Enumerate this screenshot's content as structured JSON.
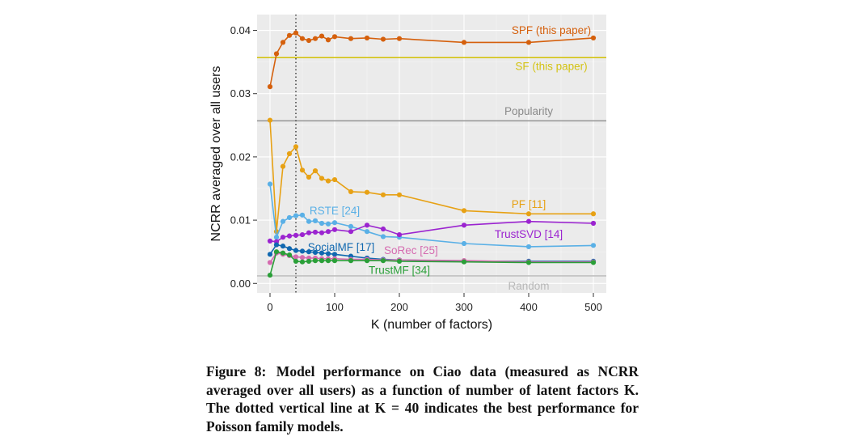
{
  "figure": {
    "caption_label": "Figure 8:",
    "caption_text": "Model performance on Ciao data (measured as NCRR averaged over all users) as a function of number of latent factors K. The dotted vertical line at K = 40 indicates the best performance for Poisson family models."
  },
  "chart_data": {
    "type": "line",
    "xlabel": "K (number of factors)",
    "ylabel": "NCRR averaged over all users",
    "xlim": [
      -20,
      520
    ],
    "ylim": [
      -0.0015,
      0.0425
    ],
    "xticks": [
      0,
      100,
      200,
      300,
      400,
      500
    ],
    "yticks": [
      0.0,
      0.01,
      0.02,
      0.03,
      0.04
    ],
    "ytick_labels": [
      "0.00",
      "0.01",
      "0.02",
      "0.03",
      "0.04"
    ],
    "grid": true,
    "background": "#ebebeb",
    "vline": {
      "x": 40,
      "style": "dotted"
    },
    "hlines": [
      {
        "name": "SF (this paper)",
        "y": 0.0357,
        "color": "#d4c313"
      },
      {
        "name": "Popularity",
        "y": 0.0257,
        "color": "#9a9a9a"
      },
      {
        "name": "Random",
        "y": 0.0012,
        "color": "#c0c0c0"
      }
    ],
    "series": [
      {
        "name": "SPF (this paper)",
        "color": "#d5600d",
        "x": [
          0,
          10,
          20,
          30,
          40,
          50,
          60,
          70,
          80,
          90,
          100,
          125,
          150,
          175,
          200,
          300,
          400,
          500
        ],
        "y": [
          0.0311,
          0.0363,
          0.0381,
          0.0392,
          0.0396,
          0.0387,
          0.0384,
          0.0387,
          0.0391,
          0.0385,
          0.039,
          0.0387,
          0.0388,
          0.0386,
          0.0387,
          0.0381,
          0.0381,
          0.0388
        ]
      },
      {
        "name": "PF [11]",
        "color": "#e7a114",
        "x": [
          0,
          10,
          20,
          30,
          40,
          50,
          60,
          70,
          80,
          90,
          100,
          125,
          150,
          175,
          200,
          300,
          400,
          500
        ],
        "y": [
          0.0258,
          0.0082,
          0.0185,
          0.0205,
          0.0216,
          0.0179,
          0.0168,
          0.0178,
          0.0166,
          0.0162,
          0.0164,
          0.0145,
          0.0144,
          0.014,
          0.014,
          0.0115,
          0.011,
          0.011
        ]
      },
      {
        "name": "RSTE [24]",
        "color": "#5ab0e6",
        "x": [
          0,
          10,
          20,
          30,
          40,
          50,
          60,
          70,
          80,
          90,
          100,
          125,
          150,
          175,
          200,
          300,
          400,
          500
        ],
        "y": [
          0.0157,
          0.0073,
          0.0098,
          0.0104,
          0.0107,
          0.0108,
          0.0098,
          0.0099,
          0.0095,
          0.0094,
          0.0096,
          0.009,
          0.0082,
          0.0074,
          0.0073,
          0.0063,
          0.0058,
          0.006
        ]
      },
      {
        "name": "TrustSVD [14]",
        "color": "#9b24d0",
        "x": [
          0,
          10,
          20,
          30,
          40,
          50,
          60,
          70,
          80,
          90,
          100,
          125,
          150,
          175,
          200,
          300,
          400,
          500
        ],
        "y": [
          0.0067,
          0.0066,
          0.0073,
          0.0075,
          0.0076,
          0.0077,
          0.008,
          0.0081,
          0.008,
          0.0082,
          0.0085,
          0.0082,
          0.0092,
          0.0086,
          0.0077,
          0.0092,
          0.0098,
          0.0095
        ]
      },
      {
        "name": "SocialMF [17]",
        "color": "#1068b0",
        "x": [
          0,
          10,
          20,
          30,
          40,
          50,
          60,
          70,
          80,
          90,
          100,
          125,
          150,
          175,
          200,
          300,
          400,
          500
        ],
        "y": [
          0.0046,
          0.0061,
          0.0059,
          0.0055,
          0.0052,
          0.0051,
          0.005,
          0.0049,
          0.0048,
          0.0047,
          0.0046,
          0.0043,
          0.004,
          0.0038,
          0.0037,
          0.0035,
          0.0035,
          0.0035
        ]
      },
      {
        "name": "SoRec [25]",
        "color": "#d56bb0",
        "x": [
          0,
          10,
          20,
          30,
          40,
          50,
          60,
          70,
          80,
          90,
          100,
          125,
          150,
          175,
          200,
          300,
          400,
          500
        ],
        "y": [
          0.0033,
          0.0048,
          0.0046,
          0.0044,
          0.0042,
          0.0041,
          0.004,
          0.004,
          0.0039,
          0.0039,
          0.0039,
          0.0038,
          0.0038,
          0.0037,
          0.0037,
          0.0036,
          0.0034,
          0.0034
        ]
      },
      {
        "name": "TrustMF [34]",
        "color": "#2a9f38",
        "x": [
          0,
          10,
          20,
          30,
          40,
          50,
          60,
          70,
          80,
          90,
          100,
          125,
          150,
          175,
          200,
          300,
          400,
          500
        ],
        "y": [
          0.0013,
          0.005,
          0.0048,
          0.0045,
          0.0035,
          0.0034,
          0.0035,
          0.0036,
          0.0036,
          0.0036,
          0.0036,
          0.0036,
          0.0036,
          0.0036,
          0.0035,
          0.0034,
          0.0033,
          0.0033
        ]
      }
    ],
    "labels": [
      {
        "text": "SPF (this paper)",
        "x": 435,
        "y": 0.04,
        "color": "#d5600d"
      },
      {
        "text": "SF (this paper)",
        "x": 435,
        "y": 0.0343,
        "color": "#d4c313"
      },
      {
        "text": "Popularity",
        "x": 400,
        "y": 0.0272,
        "color": "#8a8a8a"
      },
      {
        "text": "PF [11]",
        "x": 400,
        "y": 0.0125,
        "color": "#e7a114"
      },
      {
        "text": "RSTE [24]",
        "x": 100,
        "y": 0.0115,
        "color": "#5ab0e6"
      },
      {
        "text": "TrustSVD [14]",
        "x": 400,
        "y": 0.0078,
        "color": "#9b24d0"
      },
      {
        "text": "SocialMF [17]",
        "x": 110,
        "y": 0.0057,
        "color": "#1068b0"
      },
      {
        "text": "SoRec [25]",
        "x": 218,
        "y": 0.0052,
        "color": "#d56bb0"
      },
      {
        "text": "TrustMF [34]",
        "x": 200,
        "y": 0.0021,
        "color": "#2a9f38"
      },
      {
        "text": "Random",
        "x": 400,
        "y": -0.0004,
        "color": "#b8b8b8"
      }
    ]
  }
}
